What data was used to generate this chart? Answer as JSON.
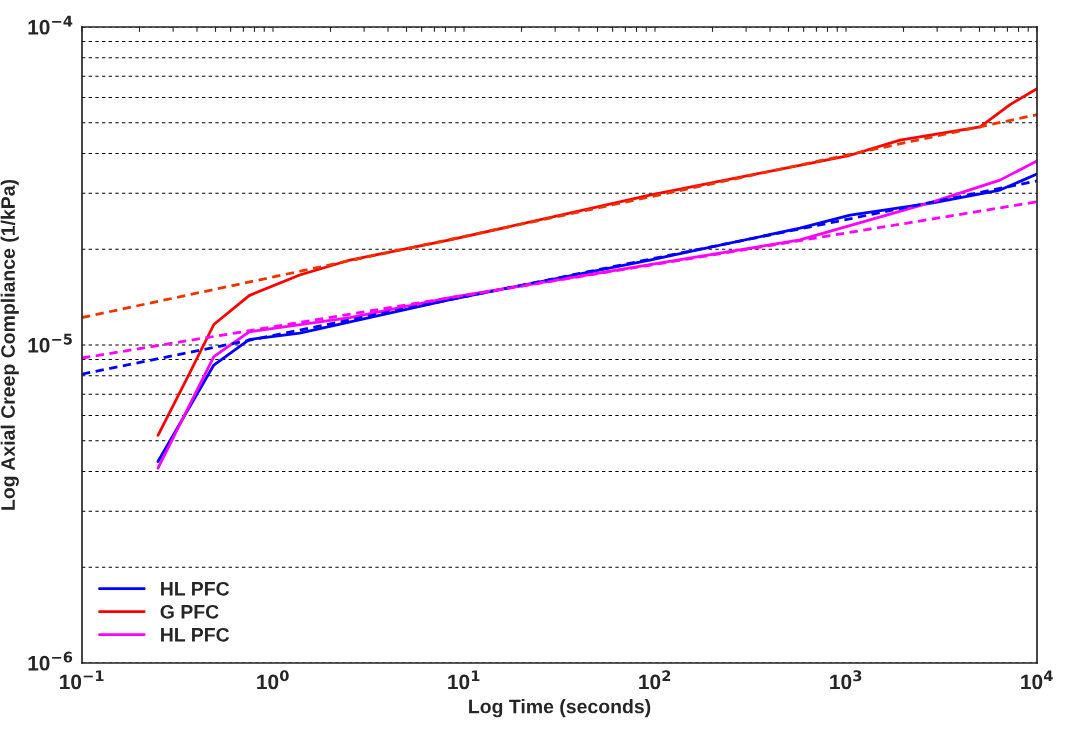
{
  "chart_data": {
    "type": "line",
    "xlabel": "Log Time (seconds)",
    "ylabel": "Log Axial Creep Compliance (1/kPa)",
    "log": "xy",
    "grid": "y",
    "legend": "bottom left",
    "xlim": [
      0.1,
      10000
    ],
    "ylim": [
      1e-06,
      0.0001
    ],
    "xticks": [
      {
        "value": 0.1,
        "label": "10$^{−1}$"
      },
      {
        "value": 0.2,
        "label": null
      },
      {
        "value": 0.3,
        "label": null
      },
      {
        "value": 0.4,
        "label": null
      },
      {
        "value": 0.5,
        "label": null
      },
      {
        "value": 0.6,
        "label": null
      },
      {
        "value": 0.7,
        "label": null
      },
      {
        "value": 0.8,
        "label": null
      },
      {
        "value": 0.9,
        "label": null
      },
      {
        "value": 1,
        "label": "10$^{0}$"
      },
      {
        "value": 2,
        "label": null
      },
      {
        "value": 3,
        "label": null
      },
      {
        "value": 4,
        "label": null
      },
      {
        "value": 5,
        "label": null
      },
      {
        "value": 6,
        "label": null
      },
      {
        "value": 7,
        "label": null
      },
      {
        "value": 8,
        "label": null
      },
      {
        "value": 9,
        "label": null
      },
      {
        "value": 10,
        "label": "10$^{1}$"
      },
      {
        "value": 20,
        "label": null
      },
      {
        "value": 30,
        "label": null
      },
      {
        "value": 40,
        "label": null
      },
      {
        "value": 50,
        "label": null
      },
      {
        "value": 60,
        "label": null
      },
      {
        "value": 70,
        "label": null
      },
      {
        "value": 80,
        "label": null
      },
      {
        "value": 90,
        "label": null
      },
      {
        "value": 100,
        "label": "10$^{2}$"
      },
      {
        "value": 200,
        "label": null
      },
      {
        "value": 300,
        "label": null
      },
      {
        "value": 400,
        "label": null
      },
      {
        "value": 500,
        "label": null
      },
      {
        "value": 600,
        "label": null
      },
      {
        "value": 700,
        "label": null
      },
      {
        "value": 800,
        "label": null
      },
      {
        "value": 900,
        "label": null
      },
      {
        "value": 1000,
        "label": "10$^{3}$"
      },
      {
        "value": 2000,
        "label": null
      },
      {
        "value": 3000,
        "label": null
      },
      {
        "value": 4000,
        "label": null
      },
      {
        "value": 5000,
        "label": null
      },
      {
        "value": 6000,
        "label": null
      },
      {
        "value": 7000,
        "label": null
      },
      {
        "value": 8000,
        "label": null
      },
      {
        "value": 9000,
        "label": null
      },
      {
        "value": 10000,
        "label": "10$^{4}$"
      }
    ],
    "yticks": [
      {
        "value": 1e-06,
        "label": "10$^{−6}$"
      },
      {
        "value": 2e-06,
        "label": null
      },
      {
        "value": 3e-06,
        "label": null
      },
      {
        "value": 4e-06,
        "label": null
      },
      {
        "value": 5e-06,
        "label": null
      },
      {
        "value": 6e-06,
        "label": null
      },
      {
        "value": 7e-06,
        "label": null
      },
      {
        "value": 8e-06,
        "label": null
      },
      {
        "value": 9e-06,
        "label": null
      },
      {
        "value": 1e-05,
        "label": "10$^{−5}$"
      },
      {
        "value": 2e-05,
        "label": null
      },
      {
        "value": 3e-05,
        "label": null
      },
      {
        "value": 4e-05,
        "label": null
      },
      {
        "value": 5e-05,
        "label": null
      },
      {
        "value": 6e-05,
        "label": null
      },
      {
        "value": 7e-05,
        "label": null
      },
      {
        "value": 8e-05,
        "label": null
      },
      {
        "value": 9e-05,
        "label": null
      },
      {
        "value": 0.0001,
        "label": "10$^{−4}$"
      }
    ],
    "series": [
      {
        "name": "HL PFC",
        "color": "#0000ff",
        "line_style": "solid",
        "x": [
          0.25,
          0.49,
          0.75,
          1.38,
          8.45,
          94,
          574,
          1050,
          2850,
          6400,
          10000
        ],
        "values": [
          4.3e-06,
          8.65e-06,
          1.04e-05,
          1.09e-05,
          1.39e-05,
          1.85e-05,
          2.33e-05,
          2.56e-05,
          2.8e-05,
          3.07e-05,
          3.45e-05
        ]
      },
      {
        "name": "G PFC",
        "color": "#ff0000",
        "line_style": "solid",
        "x": [
          0.25,
          0.36,
          0.49,
          0.75,
          1.38,
          2.53,
          8.45,
          94,
          1050,
          1920,
          5040,
          7230,
          10000
        ],
        "values": [
          5.2e-06,
          8e-06,
          1.16e-05,
          1.43e-05,
          1.66e-05,
          1.85e-05,
          2.14e-05,
          2.96e-05,
          3.95e-05,
          4.41e-05,
          4.85e-05,
          5.7e-05,
          6.4e-05
        ]
      },
      {
        "name": "HL PFC",
        "color": "#ff00ff",
        "line_style": "solid",
        "x": [
          0.25,
          0.49,
          0.75,
          2.53,
          8.45,
          94,
          574,
          2850,
          6400,
          10000
        ],
        "values": [
          4.1e-06,
          9.2e-06,
          1.1e-05,
          1.22e-05,
          1.41e-05,
          1.79e-05,
          2.14e-05,
          2.82e-05,
          3.3e-05,
          3.79e-05
        ]
      },
      {
        "color": "#ee3300",
        "line_style": "dashed",
        "x": [
          0.1,
          10000
        ],
        "values": [
          1.22e-05,
          5.3e-05
        ]
      },
      {
        "color": "#0000ff",
        "line_style": "dashed",
        "x": [
          0.1,
          10000
        ],
        "values": [
          8.1e-06,
          3.28e-05
        ]
      },
      {
        "color": "#ff00ff",
        "line_style": "dashed",
        "x": [
          0.1,
          10000
        ],
        "values": [
          9.1e-06,
          2.82e-05
        ]
      }
    ]
  }
}
